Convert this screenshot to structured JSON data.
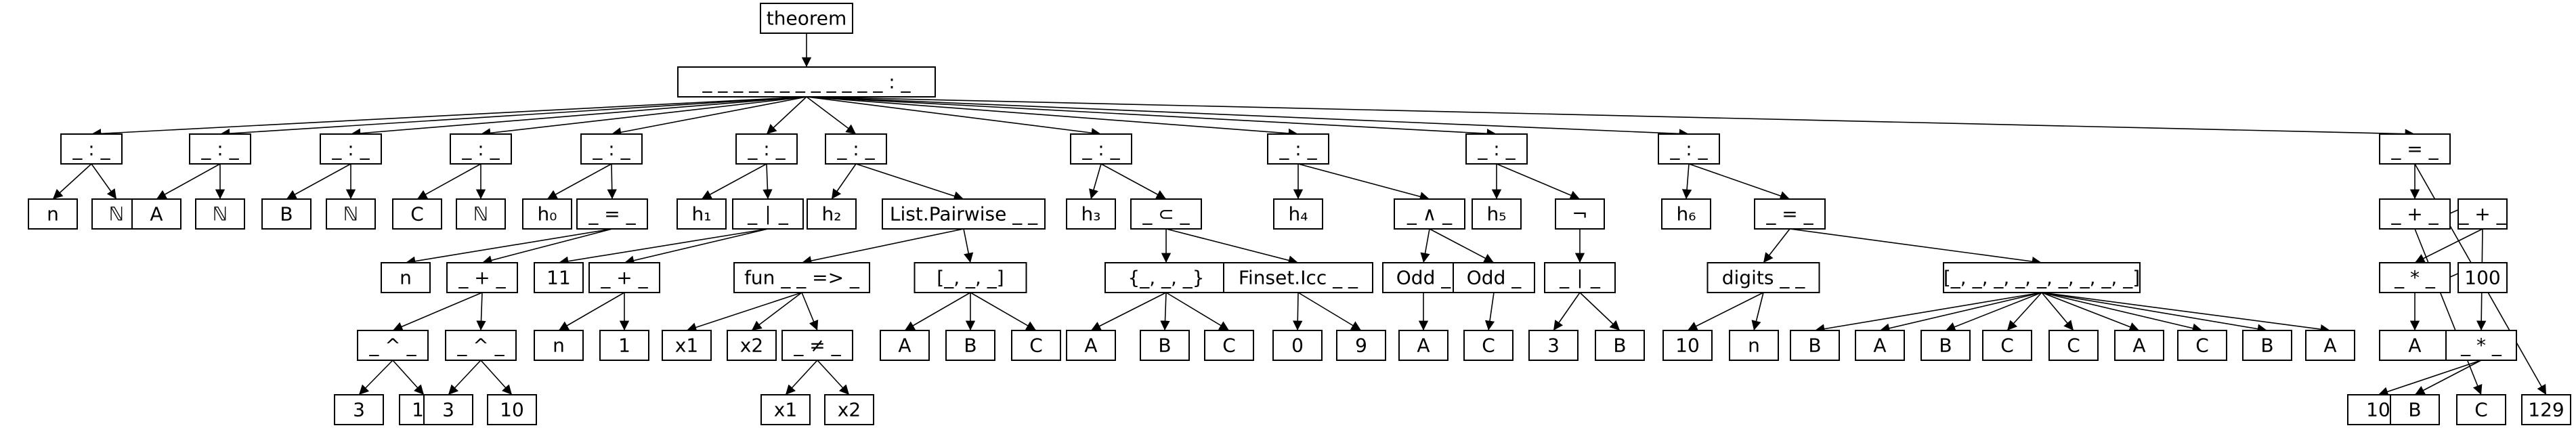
{
  "tree": {
    "label": "theorem",
    "children": [
      {
        "label": "_ _ _ _ _ _ _ _ _ _ _ _ : _",
        "children": [
          {
            "label": "_ : _",
            "children": [
              {
                "label": "n"
              },
              {
                "label": "ℕ"
              }
            ]
          },
          {
            "label": "_ : _",
            "children": [
              {
                "label": "A"
              },
              {
                "label": "ℕ"
              }
            ]
          },
          {
            "label": "_ : _",
            "children": [
              {
                "label": "B"
              },
              {
                "label": "ℕ"
              }
            ]
          },
          {
            "label": "_ : _",
            "children": [
              {
                "label": "C"
              },
              {
                "label": "ℕ"
              }
            ]
          },
          {
            "label": "_ : _",
            "children": [
              {
                "label": "h₀"
              },
              {
                "label": "_ = _",
                "children": [
                  {
                    "label": "n"
                  },
                  {
                    "label": "_ + _",
                    "children": [
                      {
                        "label": "_ ^ _",
                        "children": [
                          {
                            "label": "3"
                          },
                          {
                            "label": "17"
                          }
                        ]
                      },
                      {
                        "label": "_ ^ _",
                        "children": [
                          {
                            "label": "3"
                          },
                          {
                            "label": "10"
                          }
                        ]
                      }
                    ]
                  }
                ]
              }
            ]
          },
          {
            "label": "_ : _",
            "children": [
              {
                "label": "h₁"
              },
              {
                "label": "_ ∣ _",
                "children": [
                  {
                    "label": "11"
                  },
                  {
                    "label": "_ + _",
                    "children": [
                      {
                        "label": "n"
                      },
                      {
                        "label": "1"
                      }
                    ]
                  }
                ]
              }
            ]
          },
          {
            "label": "_ : _",
            "children": [
              {
                "label": "h₂"
              },
              {
                "label": "List.Pairwise _ _",
                "children": [
                  {
                    "label": "fun _ _ => _",
                    "children": [
                      {
                        "label": "x1"
                      },
                      {
                        "label": "x2"
                      },
                      {
                        "label": "_ ≠ _",
                        "children": [
                          {
                            "label": "x1"
                          },
                          {
                            "label": "x2"
                          }
                        ]
                      }
                    ]
                  },
                  {
                    "label": "[_, _, _]",
                    "children": [
                      {
                        "label": "A"
                      },
                      {
                        "label": "B"
                      },
                      {
                        "label": "C"
                      }
                    ]
                  }
                ]
              }
            ]
          },
          {
            "label": "_ : _",
            "children": [
              {
                "label": "h₃"
              },
              {
                "label": "_ ⊂ _",
                "children": [
                  {
                    "label": "{_, _, _}",
                    "children": [
                      {
                        "label": "A"
                      },
                      {
                        "label": "B"
                      },
                      {
                        "label": "C"
                      }
                    ]
                  },
                  {
                    "label": "Finset.Icc _ _",
                    "children": [
                      {
                        "label": "0"
                      },
                      {
                        "label": "9"
                      }
                    ]
                  }
                ]
              }
            ]
          },
          {
            "label": "_ : _",
            "children": [
              {
                "label": "h₄"
              },
              {
                "label": "_ ∧ _",
                "children": [
                  {
                    "label": "Odd _",
                    "children": [
                      {
                        "label": "A"
                      }
                    ]
                  },
                  {
                    "label": "Odd _",
                    "children": [
                      {
                        "label": "C"
                      }
                    ]
                  }
                ]
              }
            ]
          },
          {
            "label": "_ : _",
            "children": [
              {
                "label": "h₅"
              },
              {
                "label": "¬",
                "children": [
                  {
                    "label": "_ ∣ _",
                    "children": [
                      {
                        "label": "3"
                      },
                      {
                        "label": "B"
                      }
                    ]
                  }
                ]
              }
            ]
          },
          {
            "label": "_ : _",
            "children": [
              {
                "label": "h₆"
              },
              {
                "label": "_ = _",
                "children": [
                  {
                    "label": "digits _ _",
                    "children": [
                      {
                        "label": "10"
                      },
                      {
                        "label": "n"
                      }
                    ]
                  },
                  {
                    "label": "[_, _, _, _, _, _, _, _, _]",
                    "children": [
                      {
                        "label": "B"
                      },
                      {
                        "label": "A"
                      },
                      {
                        "label": "B"
                      },
                      {
                        "label": "C"
                      },
                      {
                        "label": "C"
                      },
                      {
                        "label": "A"
                      },
                      {
                        "label": "C"
                      },
                      {
                        "label": "B"
                      },
                      {
                        "label": "A"
                      }
                    ]
                  }
                ]
              }
            ]
          },
          {
            "label": "_ = _",
            "children": [
              {
                "label": "_ + _",
                "children": [
                  {
                    "label": "_ + _",
                    "children": [
                      {
                        "label": "_ * _",
                        "children": [
                          {
                            "label": "100"
                          },
                          {
                            "label": "A"
                          }
                        ]
                      },
                      {
                        "label": "_ * _",
                        "children": [
                          {
                            "label": "10"
                          },
                          {
                            "label": "B"
                          }
                        ]
                      }
                    ]
                  },
                  {
                    "label": "C"
                  }
                ]
              },
              {
                "label": "129"
              }
            ]
          }
        ]
      }
    ]
  }
}
